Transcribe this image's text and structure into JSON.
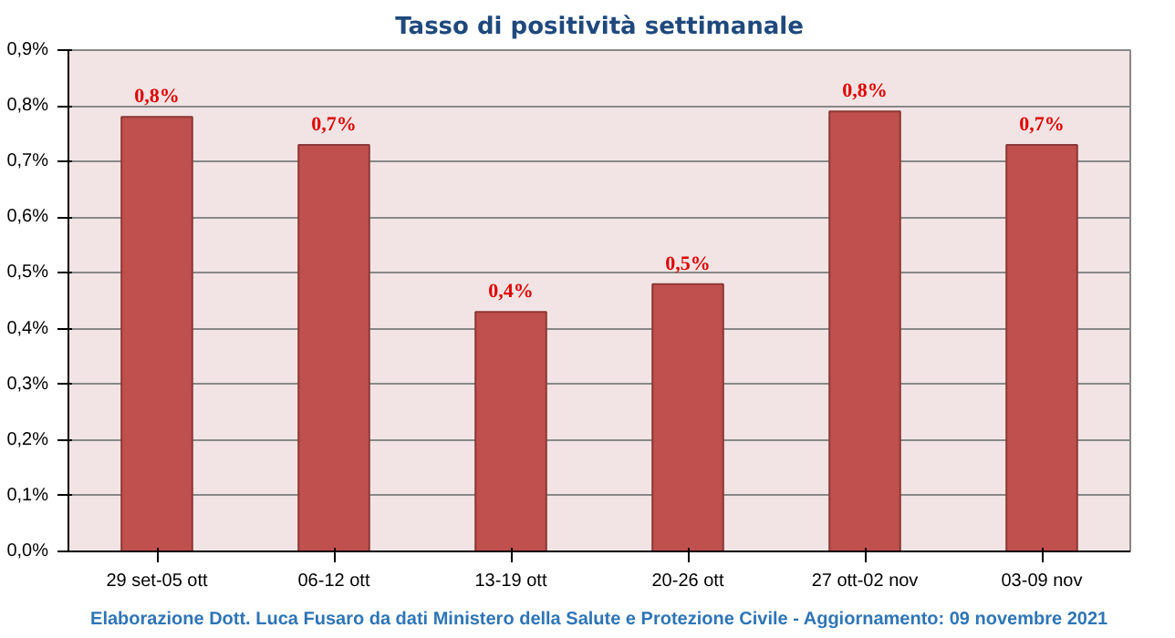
{
  "chart_data": {
    "type": "bar",
    "title": "Tasso di positività settimanale",
    "categories": [
      "29 set-05 ott",
      "06-12 ott",
      "13-19 ott",
      "20-26 ott",
      "27 ott-02 nov",
      "03-09 nov"
    ],
    "values": [
      0.78,
      0.73,
      0.43,
      0.48,
      0.79,
      0.73
    ],
    "value_labels": [
      "0,8%",
      "0,7%",
      "0,4%",
      "0,5%",
      "0,8%",
      "0,7%"
    ],
    "color": "#c0504d",
    "ylim": [
      0,
      0.9
    ],
    "yticks": [
      {
        "value": 0,
        "label": "0,0%"
      },
      {
        "value": 0.1,
        "label": "0,1%"
      },
      {
        "value": 0.2,
        "label": "0,2%"
      },
      {
        "value": 0.3,
        "label": "0,3%"
      },
      {
        "value": 0.4,
        "label": "0,4%"
      },
      {
        "value": 0.5,
        "label": "0,5%"
      },
      {
        "value": 0.6,
        "label": "0,6%"
      },
      {
        "value": 0.7,
        "label": "0,7%"
      },
      {
        "value": 0.8,
        "label": "0,8%"
      },
      {
        "value": 0.9,
        "label": "0,9%"
      }
    ],
    "grid": "y",
    "annotations": [
      "Elaborazione Dott. Luca Fusaro da dati Ministero della Salute e Protezione Civile - Aggiornamento: 09 novembre 2021"
    ]
  }
}
